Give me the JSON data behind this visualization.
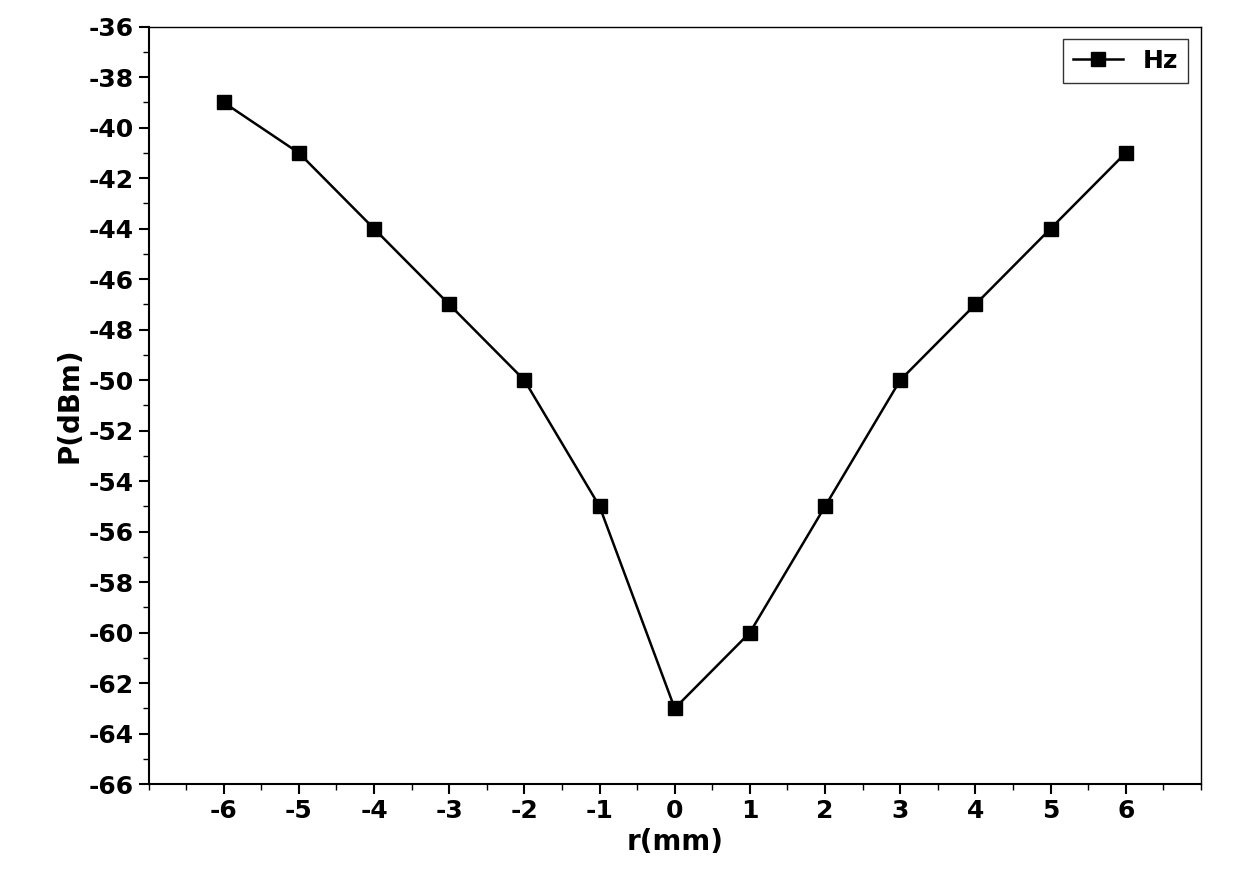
{
  "x": [
    -6,
    -5,
    -4,
    -3,
    -2,
    -1,
    0,
    1,
    2,
    3,
    4,
    5,
    6
  ],
  "y": [
    -39,
    -41,
    -44,
    -47,
    -50,
    -55,
    -63,
    -60,
    -55,
    -50,
    -47,
    -44,
    -41
  ],
  "line_color": "#000000",
  "marker": "s",
  "marker_color": "#000000",
  "marker_size": 10,
  "line_width": 1.8,
  "xlabel": "r(mm)",
  "ylabel": "P(dBm)",
  "xlim": [
    -7,
    7
  ],
  "ylim": [
    -66,
    -36
  ],
  "xticks": [
    -6,
    -5,
    -4,
    -3,
    -2,
    -1,
    0,
    1,
    2,
    3,
    4,
    5,
    6
  ],
  "yticks": [
    -36,
    -38,
    -40,
    -42,
    -44,
    -46,
    -48,
    -50,
    -52,
    -54,
    -56,
    -58,
    -60,
    -62,
    -64,
    -66
  ],
  "legend_label": "Hz",
  "legend_loc": "upper right",
  "background_color": "#ffffff",
  "tick_fontsize": 18,
  "label_fontsize": 20,
  "legend_fontsize": 18
}
